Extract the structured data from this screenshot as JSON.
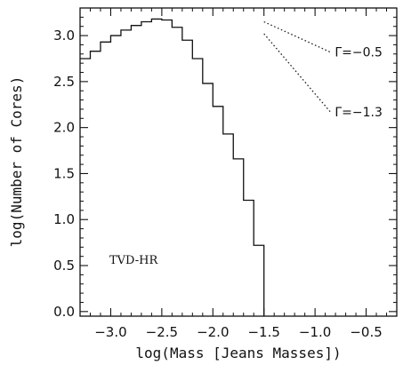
{
  "chart_data": {
    "type": "line",
    "style": "step histogram",
    "xlabel": "log(Mass [Jeans Masses])",
    "ylabel": "log(Number of Cores)",
    "xlim": [
      -3.3,
      -0.2
    ],
    "ylim": [
      -0.05,
      3.3
    ],
    "x_ticks": [
      -3.0,
      -2.5,
      -2.0,
      -1.5,
      -1.0,
      -0.5
    ],
    "x_tick_labels": [
      "−3.0",
      "−2.5",
      "−2.0",
      "−1.5",
      "−1.0",
      "−0.5"
    ],
    "y_ticks": [
      0.0,
      0.5,
      1.0,
      1.5,
      2.0,
      2.5,
      3.0
    ],
    "y_tick_labels": [
      "0.0",
      "0.5",
      "1.0",
      "1.5",
      "2.0",
      "2.5",
      "3.0"
    ],
    "grid": false,
    "bin_edges": [
      -3.3,
      -3.2,
      -3.1,
      -3.0,
      -2.9,
      -2.8,
      -2.7,
      -2.6,
      -2.5,
      -2.4,
      -2.3,
      -2.2,
      -2.1,
      -2.0,
      -1.9,
      -1.8,
      -1.7,
      -1.6,
      -1.5
    ],
    "counts": [
      2.75,
      2.83,
      2.93,
      3.0,
      3.06,
      3.11,
      3.15,
      3.18,
      3.17,
      3.09,
      2.95,
      2.75,
      2.48,
      2.23,
      1.93,
      1.66,
      1.21,
      0.72
    ],
    "dataset_label": "TVD-HR",
    "reference_slopes": [
      {
        "label": "Γ=−0.5",
        "slope": -0.5,
        "x_start": -1.5,
        "y_start": 3.15,
        "x_end": -0.85,
        "y_end": 2.82
      },
      {
        "label": "Γ=−1.3",
        "slope": -1.3,
        "x_start": -1.5,
        "y_start": 3.02,
        "x_end": -0.85,
        "y_end": 2.17
      }
    ]
  }
}
